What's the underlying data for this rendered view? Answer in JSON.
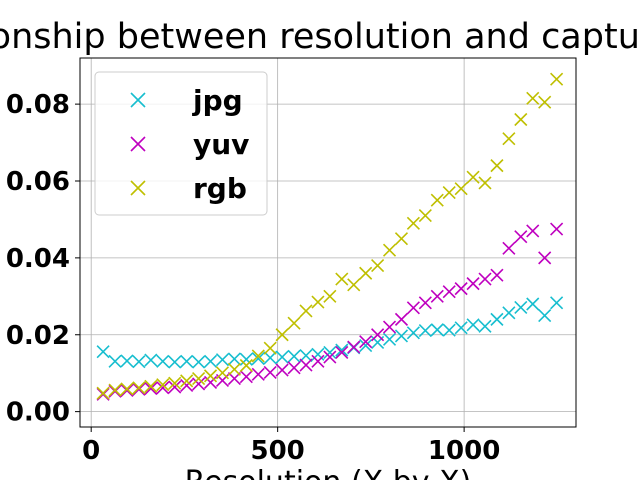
{
  "chart_data": {
    "type": "scatter",
    "title": "Relationship between resolution and capture time",
    "xlabel": "Resolution (X by X)",
    "ylabel": "",
    "xlim": [
      -30,
      1300
    ],
    "ylim": [
      -0.004,
      0.092
    ],
    "xticks": [
      0,
      500,
      1000
    ],
    "xtick_labels": [
      "0",
      "500",
      "1000"
    ],
    "yticks": [
      0.0,
      0.02,
      0.04,
      0.06,
      0.08
    ],
    "ytick_labels": [
      "0.00",
      "0.02",
      "0.04",
      "0.06",
      "0.08"
    ],
    "grid": true,
    "legend": "upper-left",
    "marker": "x",
    "series": [
      {
        "name": "jpg",
        "color": "#17becf",
        "x": [
          32,
          64,
          96,
          128,
          160,
          192,
          224,
          256,
          288,
          320,
          352,
          384,
          416,
          448,
          480,
          512,
          544,
          576,
          608,
          640,
          672,
          704,
          736,
          768,
          800,
          832,
          864,
          896,
          928,
          960,
          992,
          1024,
          1056,
          1088,
          1120,
          1152,
          1184,
          1216,
          1248
        ],
        "y": [
          0.0156,
          0.0131,
          0.0132,
          0.013,
          0.0134,
          0.0131,
          0.0129,
          0.0131,
          0.0129,
          0.0131,
          0.0135,
          0.0137,
          0.0136,
          0.0138,
          0.014,
          0.0142,
          0.0144,
          0.0146,
          0.0149,
          0.0154,
          0.016,
          0.0166,
          0.0172,
          0.018,
          0.0188,
          0.0197,
          0.0205,
          0.0211,
          0.0213,
          0.0212,
          0.0218,
          0.0226,
          0.0222,
          0.024,
          0.0257,
          0.0271,
          0.028,
          0.025,
          0.0283
        ]
      },
      {
        "name": "yuv",
        "color": "#bf00bf",
        "x": [
          32,
          64,
          96,
          128,
          160,
          192,
          224,
          256,
          288,
          320,
          352,
          384,
          416,
          448,
          480,
          512,
          544,
          576,
          608,
          640,
          672,
          704,
          736,
          768,
          800,
          832,
          864,
          896,
          928,
          960,
          992,
          1024,
          1056,
          1088,
          1120,
          1152,
          1184,
          1216,
          1248
        ],
        "y": [
          0.0045,
          0.0053,
          0.0055,
          0.0058,
          0.006,
          0.0062,
          0.0064,
          0.0068,
          0.0072,
          0.0076,
          0.0081,
          0.0086,
          0.0091,
          0.0097,
          0.0102,
          0.0108,
          0.0114,
          0.0121,
          0.0131,
          0.0142,
          0.0154,
          0.0168,
          0.0182,
          0.02,
          0.022,
          0.024,
          0.027,
          0.0283,
          0.03,
          0.0312,
          0.032,
          0.0333,
          0.0345,
          0.0355,
          0.0425,
          0.0455,
          0.047,
          0.04,
          0.0475
        ]
      },
      {
        "name": "rgb",
        "color": "#bfbf00",
        "x": [
          32,
          64,
          96,
          128,
          160,
          192,
          224,
          256,
          288,
          320,
          352,
          384,
          416,
          448,
          480,
          512,
          544,
          576,
          608,
          640,
          672,
          704,
          736,
          768,
          800,
          832,
          864,
          896,
          928,
          960,
          992,
          1024,
          1056,
          1088,
          1120,
          1152,
          1184,
          1216,
          1248
        ],
        "y": [
          0.0048,
          0.0056,
          0.0059,
          0.0062,
          0.0066,
          0.007,
          0.0074,
          0.008,
          0.0086,
          0.0093,
          0.0101,
          0.011,
          0.012,
          0.0145,
          0.0165,
          0.02,
          0.023,
          0.0262,
          0.0285,
          0.03,
          0.0345,
          0.033,
          0.036,
          0.038,
          0.042,
          0.045,
          0.049,
          0.051,
          0.055,
          0.057,
          0.058,
          0.061,
          0.0595,
          0.064,
          0.071,
          0.076,
          0.0815,
          0.0805,
          0.0865
        ]
      }
    ]
  }
}
